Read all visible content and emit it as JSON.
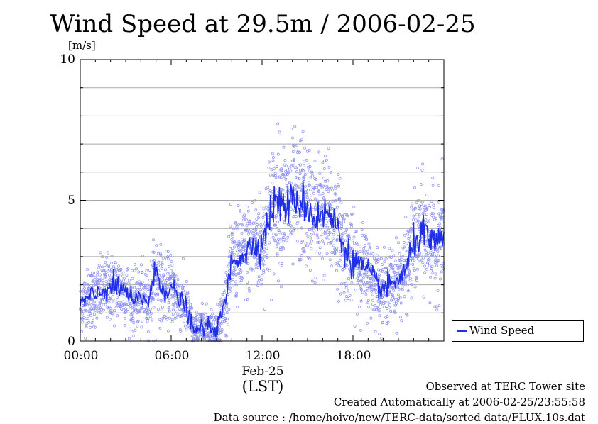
{
  "chart_data": {
    "type": "line",
    "title": "Wind Speed at 29.5m / 2006-02-25",
    "ylabel": "[m/s]",
    "xlabel": "(LST)",
    "date_label": "Feb-25",
    "ylim": [
      0,
      10
    ],
    "xlim_hours": [
      0,
      24
    ],
    "yticks": [
      "0",
      "5",
      "10"
    ],
    "xticks": [
      {
        "hour": 0,
        "label": "00:00"
      },
      {
        "hour": 6,
        "label": "06:00"
      },
      {
        "hour": 12,
        "label": "12:00"
      },
      {
        "hour": 18,
        "label": "18:00"
      }
    ],
    "grid": true,
    "legend_position": "right",
    "series": [
      {
        "name": "Wind Speed",
        "color": "#1f2fe8",
        "x_hours": [
          0.0,
          0.5,
          1.0,
          1.5,
          2.0,
          2.5,
          3.0,
          3.5,
          4.0,
          4.5,
          5.0,
          5.5,
          6.0,
          6.5,
          7.0,
          7.5,
          8.0,
          8.5,
          9.0,
          9.5,
          10.0,
          10.5,
          11.0,
          11.5,
          12.0,
          12.5,
          13.0,
          13.5,
          14.0,
          14.5,
          15.0,
          15.5,
          16.0,
          16.5,
          17.0,
          17.5,
          18.0,
          18.5,
          19.0,
          19.5,
          20.0,
          20.5,
          21.0,
          21.5,
          22.0,
          22.5,
          23.0,
          23.5,
          24.0
        ],
        "mean": [
          1.3,
          1.5,
          1.6,
          1.8,
          1.9,
          1.9,
          1.8,
          1.3,
          1.6,
          1.4,
          2.5,
          1.8,
          1.9,
          1.5,
          1.2,
          0.3,
          0.5,
          0.5,
          0.4,
          1.2,
          2.8,
          3.0,
          3.2,
          3.5,
          3.4,
          4.5,
          5.0,
          4.8,
          4.9,
          5.0,
          4.8,
          4.3,
          4.6,
          4.4,
          4.0,
          3.2,
          2.8,
          2.7,
          2.4,
          2.1,
          1.8,
          2.0,
          2.2,
          2.5,
          3.4,
          3.9,
          3.6,
          3.3,
          3.9
        ]
      }
    ]
  },
  "footer": {
    "observed": "Observed at TERC Tower site",
    "created": "Created Automatically at 2006-02-25/23:55:58",
    "source": "Data source : /home/hoivo/new/TERC-data/sorted data/FLUX.10s.dat"
  }
}
